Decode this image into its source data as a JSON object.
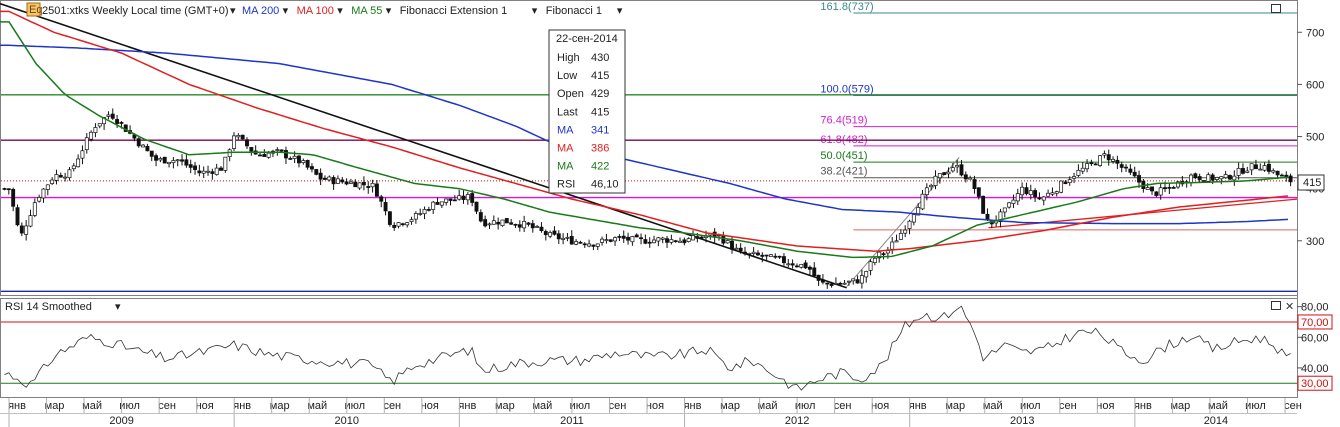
{
  "header": {
    "symbol": "2501:xtks Weekly Local time (GMT+0)",
    "indicators": [
      {
        "label": "MA 200",
        "color": "#1f35c8"
      },
      {
        "label": "MA 100",
        "color": "#e02020"
      },
      {
        "label": "MA 55",
        "color": "#1a7a1a"
      },
      {
        "label": "Fibonacci Extension 1",
        "color": "#222222"
      },
      {
        "label": "Fibonacci 1",
        "color": "#222222"
      }
    ]
  },
  "tooltip": {
    "date": "22-сен-2014",
    "rows": [
      {
        "k": "High",
        "v": "430",
        "color": "#222222"
      },
      {
        "k": "Low",
        "v": "415",
        "color": "#222222"
      },
      {
        "k": "Open",
        "v": "429",
        "color": "#222222"
      },
      {
        "k": "Last",
        "v": "415",
        "color": "#222222"
      },
      {
        "k": "MA",
        "v": "341",
        "color": "#1f35c8"
      },
      {
        "k": "MA",
        "v": "386",
        "color": "#e02020"
      },
      {
        "k": "MA",
        "v": "422",
        "color": "#1a7a1a"
      },
      {
        "k": "RSI",
        "v": "46,10",
        "color": "#222222"
      }
    ]
  },
  "price_tag": "415",
  "fib_labels": [
    "161.8(737)",
    "100.0(579)",
    "76.4(519)",
    "61.8(482)",
    "50.0(451)",
    "38.2(421)"
  ],
  "rsi_panel": {
    "title": "RSI 14 Smoothed",
    "tags": [
      "80,00",
      "70,00",
      "60,00",
      "40,00",
      "30,00"
    ]
  },
  "chart_data": {
    "type": "candlestick",
    "price_axis": {
      "ticks": [
        300,
        400,
        500,
        600,
        700
      ],
      "ylim": [
        196,
        760
      ]
    },
    "rsi_axis": {
      "ticks": [
        40,
        60,
        80
      ],
      "ylim": [
        21,
        85
      ],
      "levels": [
        70,
        30
      ]
    },
    "months": [
      "янв",
      "мар",
      "май",
      "июл",
      "сен",
      "ноя",
      "янв",
      "мар",
      "май",
      "июл",
      "сен",
      "ноя",
      "янв",
      "мар",
      "май",
      "июл",
      "сен",
      "ноя",
      "янв",
      "мар",
      "май",
      "июл",
      "сен",
      "ноя",
      "янв",
      "мар",
      "май",
      "июл",
      "сен",
      "ноя",
      "янв",
      "мар",
      "май",
      "июл",
      "сен"
    ],
    "years": [
      "2009",
      "2010",
      "2011",
      "2012",
      "2013",
      "2014"
    ],
    "price_anchors": [
      [
        2009.0,
        400
      ],
      [
        2009.05,
        305
      ],
      [
        2009.12,
        380
      ],
      [
        2009.2,
        425
      ],
      [
        2009.27,
        430
      ],
      [
        2009.38,
        520
      ],
      [
        2009.45,
        545
      ],
      [
        2009.55,
        500
      ],
      [
        2009.65,
        455
      ],
      [
        2009.75,
        455
      ],
      [
        2009.85,
        430
      ],
      [
        2009.95,
        440
      ],
      [
        2010.0,
        505
      ],
      [
        2010.1,
        465
      ],
      [
        2010.2,
        470
      ],
      [
        2010.3,
        450
      ],
      [
        2010.38,
        420
      ],
      [
        2010.45,
        415
      ],
      [
        2010.55,
        410
      ],
      [
        2010.62,
        405
      ],
      [
        2010.7,
        330
      ],
      [
        2010.8,
        345
      ],
      [
        2010.9,
        375
      ],
      [
        2011.0,
        380
      ],
      [
        2011.05,
        385
      ],
      [
        2011.1,
        335
      ],
      [
        2011.2,
        338
      ],
      [
        2011.3,
        330
      ],
      [
        2011.4,
        310
      ],
      [
        2011.5,
        300
      ],
      [
        2011.6,
        295
      ],
      [
        2011.7,
        305
      ],
      [
        2011.8,
        300
      ],
      [
        2011.9,
        303
      ],
      [
        2012.0,
        300
      ],
      [
        2012.1,
        310
      ],
      [
        2012.15,
        310
      ],
      [
        2012.25,
        275
      ],
      [
        2012.35,
        270
      ],
      [
        2012.45,
        260
      ],
      [
        2012.55,
        250
      ],
      [
        2012.6,
        218
      ],
      [
        2012.7,
        218
      ],
      [
        2012.78,
        225
      ],
      [
        2012.85,
        270
      ],
      [
        2012.9,
        280
      ],
      [
        2012.97,
        320
      ],
      [
        2013.05,
        380
      ],
      [
        2013.12,
        420
      ],
      [
        2013.2,
        445
      ],
      [
        2013.28,
        410
      ],
      [
        2013.35,
        330
      ],
      [
        2013.42,
        355
      ],
      [
        2013.5,
        400
      ],
      [
        2013.58,
        380
      ],
      [
        2013.65,
        400
      ],
      [
        2013.72,
        425
      ],
      [
        2013.8,
        445
      ],
      [
        2013.87,
        465
      ],
      [
        2013.93,
        445
      ],
      [
        2014.0,
        420
      ],
      [
        2014.08,
        390
      ],
      [
        2014.15,
        400
      ],
      [
        2014.25,
        425
      ],
      [
        2014.32,
        420
      ],
      [
        2014.4,
        420
      ],
      [
        2014.5,
        440
      ],
      [
        2014.57,
        445
      ],
      [
        2014.62,
        430
      ],
      [
        2014.68,
        415
      ]
    ],
    "rsi_anchors": [
      [
        2009.0,
        36
      ],
      [
        2009.1,
        29
      ],
      [
        2009.2,
        48
      ],
      [
        2009.35,
        60
      ],
      [
        2009.45,
        57
      ],
      [
        2009.55,
        52
      ],
      [
        2009.7,
        46
      ],
      [
        2009.85,
        50
      ],
      [
        2010.0,
        55
      ],
      [
        2010.15,
        49
      ],
      [
        2010.3,
        46
      ],
      [
        2010.45,
        44
      ],
      [
        2010.6,
        42
      ],
      [
        2010.7,
        31
      ],
      [
        2010.8,
        42
      ],
      [
        2010.95,
        48
      ],
      [
        2011.05,
        52
      ],
      [
        2011.1,
        38
      ],
      [
        2011.25,
        43
      ],
      [
        2011.4,
        45
      ],
      [
        2011.55,
        45
      ],
      [
        2011.7,
        50
      ],
      [
        2011.85,
        47
      ],
      [
        2012.0,
        49
      ],
      [
        2012.1,
        52
      ],
      [
        2012.2,
        40
      ],
      [
        2012.3,
        45
      ],
      [
        2012.42,
        34
      ],
      [
        2012.5,
        26
      ],
      [
        2012.6,
        33
      ],
      [
        2012.7,
        37
      ],
      [
        2012.78,
        33
      ],
      [
        2012.88,
        42
      ],
      [
        2012.97,
        66
      ],
      [
        2013.05,
        75
      ],
      [
        2013.15,
        73
      ],
      [
        2013.22,
        81
      ],
      [
        2013.28,
        66
      ],
      [
        2013.33,
        46
      ],
      [
        2013.42,
        55
      ],
      [
        2013.5,
        50
      ],
      [
        2013.6,
        52
      ],
      [
        2013.7,
        60
      ],
      [
        2013.78,
        64
      ],
      [
        2013.85,
        62
      ],
      [
        2013.95,
        50
      ],
      [
        2014.05,
        45
      ],
      [
        2014.12,
        53
      ],
      [
        2014.25,
        61
      ],
      [
        2014.35,
        52
      ],
      [
        2014.45,
        57
      ],
      [
        2014.55,
        60
      ],
      [
        2014.62,
        55
      ],
      [
        2014.68,
        46
      ]
    ],
    "moving_averages": [
      {
        "period": 200,
        "color": "#1f35c8",
        "anchors": [
          [
            2009.0,
            675
          ],
          [
            2009.3,
            670
          ],
          [
            2009.7,
            660
          ],
          [
            2010.2,
            640
          ],
          [
            2010.7,
            600
          ],
          [
            2011.0,
            560
          ],
          [
            2011.25,
            520
          ],
          [
            2011.4,
            490
          ],
          [
            2011.6,
            470
          ],
          [
            2011.9,
            440
          ],
          [
            2012.2,
            410
          ],
          [
            2012.45,
            380
          ],
          [
            2012.7,
            360
          ],
          [
            2012.95,
            355
          ],
          [
            2013.2,
            345
          ],
          [
            2013.5,
            335
          ],
          [
            2013.9,
            333
          ],
          [
            2014.2,
            333
          ],
          [
            2014.5,
            337
          ],
          [
            2014.68,
            341
          ]
        ]
      },
      {
        "period": 100,
        "color": "#e02020",
        "anchors": [
          [
            2009.0,
            740
          ],
          [
            2009.2,
            700
          ],
          [
            2009.5,
            660
          ],
          [
            2009.8,
            600
          ],
          [
            2010.1,
            555
          ],
          [
            2010.4,
            515
          ],
          [
            2010.7,
            480
          ],
          [
            2011.0,
            440
          ],
          [
            2011.25,
            410
          ],
          [
            2011.5,
            380
          ],
          [
            2011.8,
            350
          ],
          [
            2012.1,
            315
          ],
          [
            2012.5,
            290
          ],
          [
            2012.85,
            280
          ],
          [
            2013.0,
            285
          ],
          [
            2013.3,
            300
          ],
          [
            2013.6,
            320
          ],
          [
            2013.9,
            345
          ],
          [
            2014.2,
            365
          ],
          [
            2014.5,
            378
          ],
          [
            2014.68,
            386
          ]
        ]
      },
      {
        "period": 55,
        "color": "#1a7a1a",
        "anchors": [
          [
            2009.0,
            720
          ],
          [
            2009.12,
            640
          ],
          [
            2009.25,
            580
          ],
          [
            2009.4,
            540
          ],
          [
            2009.6,
            495
          ],
          [
            2009.8,
            465
          ],
          [
            2010.0,
            470
          ],
          [
            2010.2,
            470
          ],
          [
            2010.35,
            465
          ],
          [
            2010.55,
            440
          ],
          [
            2010.8,
            410
          ],
          [
            2011.0,
            400
          ],
          [
            2011.2,
            380
          ],
          [
            2011.4,
            355
          ],
          [
            2011.6,
            340
          ],
          [
            2011.8,
            325
          ],
          [
            2012.0,
            315
          ],
          [
            2012.25,
            300
          ],
          [
            2012.5,
            280
          ],
          [
            2012.75,
            268
          ],
          [
            2012.92,
            270
          ],
          [
            2013.1,
            290
          ],
          [
            2013.3,
            330
          ],
          [
            2013.55,
            355
          ],
          [
            2013.75,
            375
          ],
          [
            2013.95,
            400
          ],
          [
            2014.1,
            410
          ],
          [
            2014.3,
            412
          ],
          [
            2014.5,
            415
          ],
          [
            2014.68,
            422
          ]
        ]
      }
    ]
  }
}
